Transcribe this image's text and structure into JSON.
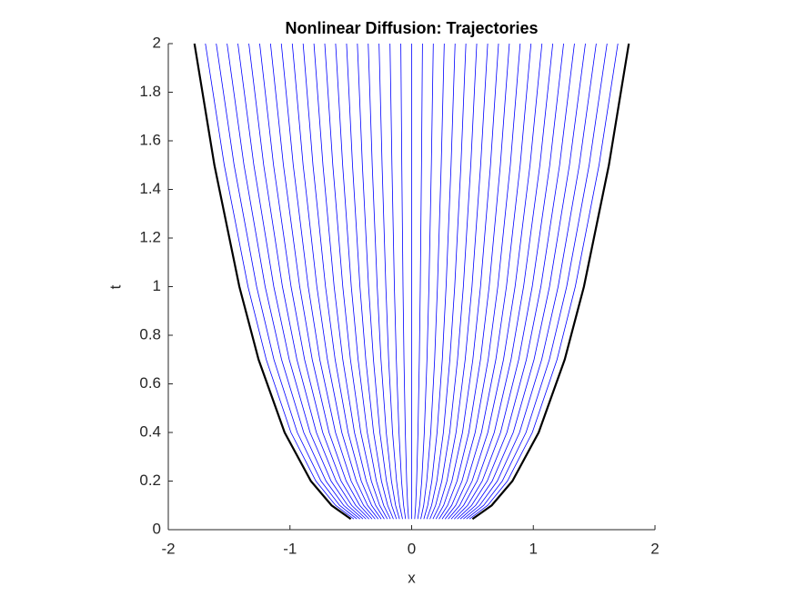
{
  "chart_data": {
    "type": "line",
    "title": "Nonlinear Diffusion: Trajectories",
    "xlabel": "x",
    "ylabel": "t",
    "xlim": [
      -2,
      2
    ],
    "ylim": [
      0,
      2
    ],
    "xticks": [
      -2,
      -1,
      0,
      1,
      2
    ],
    "yticks": [
      0,
      0.2,
      0.4,
      0.6,
      0.8,
      1,
      1.2,
      1.4,
      1.6,
      1.8,
      2
    ],
    "y": [
      0.044,
      0.1,
      0.2,
      0.4,
      0.7,
      1,
      1.5,
      2
    ],
    "series": [
      {
        "color": "#000000",
        "x": [
          -0.5,
          -0.658,
          -0.828,
          -1.044,
          -1.258,
          -1.416,
          -1.621,
          -1.785
        ]
      },
      {
        "color": "#0000ff",
        "x": [
          -0.475,
          -0.625,
          -0.787,
          -0.992,
          -1.195,
          -1.345,
          -1.54,
          -1.695
        ]
      },
      {
        "color": "#0000ff",
        "x": [
          -0.45,
          -0.592,
          -0.745,
          -0.94,
          -1.132,
          -1.274,
          -1.459,
          -1.606
        ]
      },
      {
        "color": "#0000ff",
        "x": [
          -0.425,
          -0.559,
          -0.704,
          -0.887,
          -1.069,
          -1.204,
          -1.378,
          -1.517
        ]
      },
      {
        "color": "#0000ff",
        "x": [
          -0.4,
          -0.526,
          -0.662,
          -0.835,
          -1.006,
          -1.133,
          -1.297,
          -1.428
        ]
      },
      {
        "color": "#0000ff",
        "x": [
          -0.375,
          -0.493,
          -0.621,
          -0.783,
          -0.943,
          -1.062,
          -1.216,
          -1.338
        ]
      },
      {
        "color": "#0000ff",
        "x": [
          -0.35,
          -0.46,
          -0.58,
          -0.731,
          -0.88,
          -0.991,
          -1.135,
          -1.249
        ]
      },
      {
        "color": "#0000ff",
        "x": [
          -0.325,
          -0.427,
          -0.538,
          -0.679,
          -0.817,
          -0.92,
          -1.054,
          -1.16
        ]
      },
      {
        "color": "#0000ff",
        "x": [
          -0.3,
          -0.395,
          -0.497,
          -0.626,
          -0.755,
          -0.85,
          -0.973,
          -1.071
        ]
      },
      {
        "color": "#0000ff",
        "x": [
          -0.275,
          -0.362,
          -0.455,
          -0.574,
          -0.692,
          -0.779,
          -0.892,
          -0.981
        ]
      },
      {
        "color": "#0000ff",
        "x": [
          -0.25,
          -0.329,
          -0.414,
          -0.522,
          -0.629,
          -0.708,
          -0.811,
          -0.892
        ]
      },
      {
        "color": "#0000ff",
        "x": [
          -0.225,
          -0.296,
          -0.373,
          -0.47,
          -0.566,
          -0.637,
          -0.729,
          -0.803
        ]
      },
      {
        "color": "#0000ff",
        "x": [
          -0.2,
          -0.263,
          -0.331,
          -0.418,
          -0.503,
          -0.566,
          -0.648,
          -0.714
        ]
      },
      {
        "color": "#0000ff",
        "x": [
          -0.175,
          -0.23,
          -0.29,
          -0.365,
          -0.44,
          -0.496,
          -0.567,
          -0.625
        ]
      },
      {
        "color": "#0000ff",
        "x": [
          -0.15,
          -0.197,
          -0.248,
          -0.313,
          -0.377,
          -0.425,
          -0.486,
          -0.535
        ]
      },
      {
        "color": "#0000ff",
        "x": [
          -0.125,
          -0.164,
          -0.207,
          -0.261,
          -0.314,
          -0.354,
          -0.405,
          -0.446
        ]
      },
      {
        "color": "#0000ff",
        "x": [
          -0.1,
          -0.132,
          -0.166,
          -0.209,
          -0.252,
          -0.283,
          -0.324,
          -0.357
        ]
      },
      {
        "color": "#0000ff",
        "x": [
          -0.075,
          -0.099,
          -0.124,
          -0.157,
          -0.189,
          -0.212,
          -0.243,
          -0.268
        ]
      },
      {
        "color": "#0000ff",
        "x": [
          -0.05,
          -0.066,
          -0.083,
          -0.104,
          -0.126,
          -0.142,
          -0.162,
          -0.178
        ]
      },
      {
        "color": "#0000ff",
        "x": [
          -0.025,
          -0.033,
          -0.041,
          -0.052,
          -0.063,
          -0.071,
          -0.081,
          -0.089
        ]
      },
      {
        "color": "#0000ff",
        "x": [
          0,
          0,
          0,
          0,
          0,
          0,
          0,
          0
        ]
      },
      {
        "color": "#0000ff",
        "x": [
          0.025,
          0.033,
          0.041,
          0.052,
          0.063,
          0.071,
          0.081,
          0.089
        ]
      },
      {
        "color": "#0000ff",
        "x": [
          0.05,
          0.066,
          0.083,
          0.104,
          0.126,
          0.142,
          0.162,
          0.178
        ]
      },
      {
        "color": "#0000ff",
        "x": [
          0.075,
          0.099,
          0.124,
          0.157,
          0.189,
          0.212,
          0.243,
          0.268
        ]
      },
      {
        "color": "#0000ff",
        "x": [
          0.1,
          0.132,
          0.166,
          0.209,
          0.252,
          0.283,
          0.324,
          0.357
        ]
      },
      {
        "color": "#0000ff",
        "x": [
          0.125,
          0.164,
          0.207,
          0.261,
          0.314,
          0.354,
          0.405,
          0.446
        ]
      },
      {
        "color": "#0000ff",
        "x": [
          0.15,
          0.197,
          0.248,
          0.313,
          0.377,
          0.425,
          0.486,
          0.535
        ]
      },
      {
        "color": "#0000ff",
        "x": [
          0.175,
          0.23,
          0.29,
          0.365,
          0.44,
          0.496,
          0.567,
          0.625
        ]
      },
      {
        "color": "#0000ff",
        "x": [
          0.2,
          0.263,
          0.331,
          0.418,
          0.503,
          0.566,
          0.648,
          0.714
        ]
      },
      {
        "color": "#0000ff",
        "x": [
          0.225,
          0.296,
          0.373,
          0.47,
          0.566,
          0.637,
          0.729,
          0.803
        ]
      },
      {
        "color": "#0000ff",
        "x": [
          0.25,
          0.329,
          0.414,
          0.522,
          0.629,
          0.708,
          0.811,
          0.892
        ]
      },
      {
        "color": "#0000ff",
        "x": [
          0.275,
          0.362,
          0.455,
          0.574,
          0.692,
          0.779,
          0.892,
          0.981
        ]
      },
      {
        "color": "#0000ff",
        "x": [
          0.3,
          0.395,
          0.497,
          0.626,
          0.755,
          0.85,
          0.973,
          1.071
        ]
      },
      {
        "color": "#0000ff",
        "x": [
          0.325,
          0.427,
          0.538,
          0.679,
          0.817,
          0.92,
          1.054,
          1.16
        ]
      },
      {
        "color": "#0000ff",
        "x": [
          0.35,
          0.46,
          0.58,
          0.731,
          0.88,
          0.991,
          1.135,
          1.249
        ]
      },
      {
        "color": "#0000ff",
        "x": [
          0.375,
          0.493,
          0.621,
          0.783,
          0.943,
          1.062,
          1.216,
          1.338
        ]
      },
      {
        "color": "#0000ff",
        "x": [
          0.4,
          0.526,
          0.662,
          0.835,
          1.006,
          1.133,
          1.297,
          1.428
        ]
      },
      {
        "color": "#0000ff",
        "x": [
          0.425,
          0.559,
          0.704,
          0.887,
          1.069,
          1.204,
          1.378,
          1.517
        ]
      },
      {
        "color": "#0000ff",
        "x": [
          0.45,
          0.592,
          0.745,
          0.94,
          1.132,
          1.274,
          1.459,
          1.606
        ]
      },
      {
        "color": "#0000ff",
        "x": [
          0.475,
          0.625,
          0.787,
          0.992,
          1.195,
          1.345,
          1.54,
          1.695
        ]
      },
      {
        "color": "#000000",
        "x": [
          0.5,
          0.658,
          0.828,
          1.044,
          1.258,
          1.416,
          1.621,
          1.785
        ]
      }
    ]
  }
}
